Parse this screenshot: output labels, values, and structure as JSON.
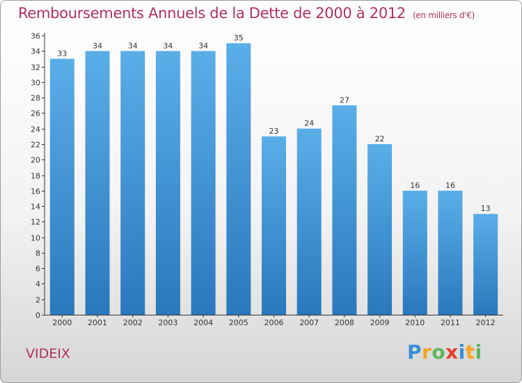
{
  "header": {
    "title": "Remboursements Annuels de la Dette de 2000 à 2012",
    "subtitle": "(en milliers d'€)"
  },
  "footer": {
    "commune": "VIDEIX",
    "logo": [
      "P",
      "r",
      "o",
      "x",
      "i",
      "t",
      "i"
    ]
  },
  "chart_data": {
    "type": "bar",
    "title": "Remboursements Annuels de la Dette de 2000 à 2012",
    "subtitle": "(en milliers d'€)",
    "categories": [
      "2000",
      "2001",
      "2002",
      "2003",
      "2004",
      "2005",
      "2006",
      "2007",
      "2008",
      "2009",
      "2010",
      "2011",
      "2012"
    ],
    "values": [
      33,
      34,
      34,
      34,
      34,
      35,
      23,
      24,
      27,
      22,
      16,
      16,
      13
    ],
    "ylim": [
      0,
      36
    ],
    "yticks": [
      0,
      2,
      4,
      6,
      8,
      10,
      12,
      14,
      16,
      18,
      20,
      22,
      24,
      26,
      28,
      30,
      32,
      34,
      36
    ],
    "grid": false,
    "colors": {
      "bar_top": "#5aaee8",
      "bar_bottom": "#2a78bd",
      "title": "#b03060"
    }
  }
}
